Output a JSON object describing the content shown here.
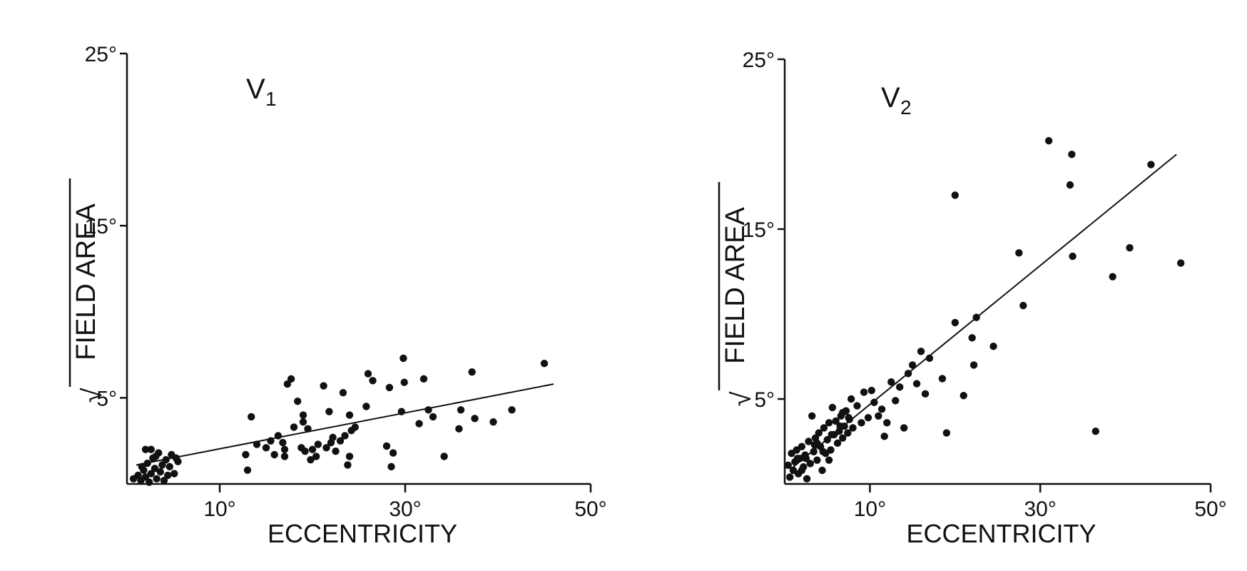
{
  "chart_data": [
    {
      "type": "scatter",
      "title": "V",
      "title_subscript": "1",
      "xlabel": "ECCENTRICITY",
      "ylabel": "FIELD AREA",
      "ylabel_root_symbol": "√",
      "xlim": [
        0,
        50
      ],
      "ylim": [
        0,
        25
      ],
      "xticks": [
        "10°",
        "30°",
        "50°"
      ],
      "yticks": [
        "5°",
        "15°",
        "25°"
      ],
      "x_tick_values": [
        10,
        30,
        50
      ],
      "y_tick_values": [
        5,
        15,
        25
      ],
      "grid": false,
      "fit_line": [
        [
          1,
          1.1
        ],
        [
          46,
          5.8
        ]
      ],
      "points": [
        [
          0.7,
          0.3
        ],
        [
          1.2,
          0.5
        ],
        [
          1.5,
          0.2
        ],
        [
          1.8,
          0.8
        ],
        [
          2.0,
          0.4
        ],
        [
          2.2,
          1.2
        ],
        [
          2.4,
          0.1
        ],
        [
          2.6,
          0.6
        ],
        [
          2.8,
          1.5
        ],
        [
          3.0,
          0.9
        ],
        [
          3.2,
          0.3
        ],
        [
          3.4,
          1.8
        ],
        [
          3.6,
          0.7
        ],
        [
          3.8,
          1.1
        ],
        [
          4.0,
          0.2
        ],
        [
          4.2,
          1.4
        ],
        [
          4.4,
          0.5
        ],
        [
          4.6,
          1.0
        ],
        [
          4.8,
          1.7
        ],
        [
          5.1,
          0.6
        ],
        [
          5.5,
          1.3
        ],
        [
          2.0,
          2.0
        ],
        [
          2.6,
          2.0
        ],
        [
          3.1,
          1.6
        ],
        [
          1.6,
          1.0
        ],
        [
          5.3,
          1.5
        ],
        [
          12.8,
          1.7
        ],
        [
          13.0,
          0.8
        ],
        [
          13.4,
          3.9
        ],
        [
          14.0,
          2.3
        ],
        [
          15.0,
          2.1
        ],
        [
          15.5,
          2.5
        ],
        [
          15.9,
          1.7
        ],
        [
          16.3,
          2.8
        ],
        [
          16.8,
          2.4
        ],
        [
          17.0,
          1.6
        ],
        [
          17.3,
          5.8
        ],
        [
          17.7,
          6.1
        ],
        [
          18.0,
          3.3
        ],
        [
          18.4,
          4.8
        ],
        [
          18.8,
          2.1
        ],
        [
          19.0,
          3.6
        ],
        [
          19.2,
          1.9
        ],
        [
          19.5,
          3.2
        ],
        [
          19.8,
          1.4
        ],
        [
          20.0,
          2.0
        ],
        [
          20.4,
          1.6
        ],
        [
          20.6,
          2.3
        ],
        [
          21.2,
          5.7
        ],
        [
          21.5,
          2.1
        ],
        [
          21.8,
          4.2
        ],
        [
          22.2,
          2.7
        ],
        [
          22.5,
          1.9
        ],
        [
          23.0,
          2.5
        ],
        [
          23.3,
          5.3
        ],
        [
          23.5,
          2.8
        ],
        [
          23.8,
          1.1
        ],
        [
          24.0,
          1.6
        ],
        [
          24.2,
          3.1
        ],
        [
          24.6,
          3.3
        ],
        [
          25.8,
          4.5
        ],
        [
          26.0,
          6.4
        ],
        [
          26.5,
          6.0
        ],
        [
          28.0,
          2.2
        ],
        [
          28.3,
          5.6
        ],
        [
          28.5,
          1.0
        ],
        [
          28.7,
          1.8
        ],
        [
          29.6,
          4.2
        ],
        [
          29.8,
          7.3
        ],
        [
          29.9,
          5.9
        ],
        [
          31.5,
          3.5
        ],
        [
          32.0,
          6.1
        ],
        [
          32.5,
          4.3
        ],
        [
          33.0,
          3.9
        ],
        [
          34.2,
          1.6
        ],
        [
          35.8,
          3.2
        ],
        [
          36.0,
          4.3
        ],
        [
          37.2,
          6.5
        ],
        [
          37.5,
          3.8
        ],
        [
          39.5,
          3.6
        ],
        [
          41.5,
          4.3
        ],
        [
          45.0,
          7.0
        ],
        [
          19.0,
          4.0
        ],
        [
          22.0,
          2.4
        ],
        [
          17.0,
          2.0
        ],
        [
          24.0,
          4.0
        ]
      ]
    },
    {
      "type": "scatter",
      "title": "V",
      "title_subscript": "2",
      "xlabel": "ECCENTRICITY",
      "ylabel": "FIELD AREA",
      "ylabel_root_symbol": "√",
      "xlim": [
        0,
        50
      ],
      "ylim": [
        0,
        25
      ],
      "xticks": [
        "10°",
        "30°",
        "50°"
      ],
      "yticks": [
        "5°",
        "15°",
        "25°"
      ],
      "x_tick_values": [
        10,
        30,
        50
      ],
      "y_tick_values": [
        5,
        15,
        25
      ],
      "grid": false,
      "fit_line": [
        [
          1,
          1.0
        ],
        [
          46,
          19.4
        ]
      ],
      "points": [
        [
          0.4,
          1.1
        ],
        [
          0.6,
          0.4
        ],
        [
          0.8,
          1.8
        ],
        [
          1.0,
          0.8
        ],
        [
          1.2,
          1.3
        ],
        [
          1.4,
          2.0
        ],
        [
          1.6,
          0.6
        ],
        [
          1.8,
          1.5
        ],
        [
          2.0,
          2.2
        ],
        [
          2.2,
          1.0
        ],
        [
          2.4,
          1.7
        ],
        [
          2.6,
          0.3
        ],
        [
          2.8,
          2.5
        ],
        [
          3.0,
          1.2
        ],
        [
          3.2,
          4.0
        ],
        [
          3.4,
          1.9
        ],
        [
          3.6,
          2.7
        ],
        [
          3.8,
          1.4
        ],
        [
          4.0,
          3.0
        ],
        [
          4.2,
          2.2
        ],
        [
          4.4,
          0.8
        ],
        [
          4.6,
          3.3
        ],
        [
          4.8,
          1.8
        ],
        [
          5.0,
          2.6
        ],
        [
          5.2,
          3.6
        ],
        [
          5.4,
          2.0
        ],
        [
          5.6,
          4.5
        ],
        [
          5.8,
          2.9
        ],
        [
          6.0,
          3.7
        ],
        [
          6.2,
          2.4
        ],
        [
          6.4,
          3.1
        ],
        [
          6.6,
          4.0
        ],
        [
          6.8,
          2.7
        ],
        [
          7.0,
          3.4
        ],
        [
          7.2,
          4.3
        ],
        [
          7.4,
          3.0
        ],
        [
          7.6,
          3.8
        ],
        [
          7.8,
          5.0
        ],
        [
          8.0,
          3.3
        ],
        [
          8.5,
          4.6
        ],
        [
          9.0,
          3.6
        ],
        [
          9.3,
          5.4
        ],
        [
          9.8,
          3.9
        ],
        [
          10.2,
          5.5
        ],
        [
          10.5,
          4.8
        ],
        [
          11.0,
          4.0
        ],
        [
          11.4,
          4.4
        ],
        [
          11.7,
          2.8
        ],
        [
          12.0,
          3.6
        ],
        [
          12.5,
          6.0
        ],
        [
          13.0,
          4.9
        ],
        [
          13.5,
          5.7
        ],
        [
          14.0,
          3.3
        ],
        [
          14.5,
          6.5
        ],
        [
          15.0,
          7.0
        ],
        [
          15.5,
          5.9
        ],
        [
          16.0,
          7.8
        ],
        [
          16.5,
          5.3
        ],
        [
          17.0,
          7.4
        ],
        [
          18.5,
          6.2
        ],
        [
          19.0,
          3.0
        ],
        [
          20.0,
          9.5
        ],
        [
          20.0,
          17.0
        ],
        [
          21.0,
          5.2
        ],
        [
          22.0,
          8.6
        ],
        [
          22.2,
          7.0
        ],
        [
          22.5,
          9.8
        ],
        [
          24.5,
          8.1
        ],
        [
          27.5,
          13.6
        ],
        [
          28.0,
          10.5
        ],
        [
          31.0,
          20.2
        ],
        [
          33.5,
          17.6
        ],
        [
          33.7,
          19.4
        ],
        [
          33.8,
          13.4
        ],
        [
          36.5,
          3.1
        ],
        [
          38.5,
          12.2
        ],
        [
          40.5,
          13.9
        ],
        [
          43.0,
          18.8
        ],
        [
          46.5,
          13.0
        ],
        [
          2.5,
          1.5
        ],
        [
          3.5,
          2.3
        ],
        [
          4.5,
          1.9
        ],
        [
          5.5,
          2.9
        ],
        [
          6.5,
          3.4
        ],
        [
          7.5,
          3.9
        ],
        [
          1.5,
          1.5
        ],
        [
          2.0,
          0.8
        ],
        [
          3.8,
          2.4
        ],
        [
          5.2,
          1.4
        ],
        [
          6.8,
          4.2
        ]
      ]
    }
  ]
}
